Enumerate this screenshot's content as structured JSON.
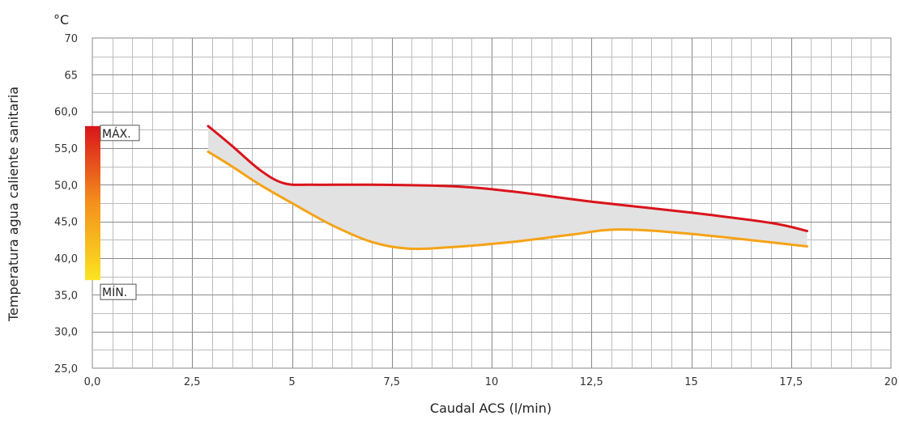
{
  "chart_data": {
    "type": "area",
    "title": "",
    "xlabel": "Caudal ACS (l/min)",
    "ylabel": "Temperatura agua caliente sanitaria",
    "y_unit": "°C",
    "xlim": [
      0,
      20
    ],
    "ylim": [
      25,
      70
    ],
    "x_ticks": [
      "0,0",
      "2,5",
      "5",
      "7,5",
      "10",
      "12,5",
      "15",
      "17,5",
      "20"
    ],
    "y_ticks": [
      "25,0",
      "30,0",
      "35,0",
      "40,0",
      "45,0",
      "50,0",
      "55,0",
      "60,0",
      "65",
      "70"
    ],
    "grid": true,
    "series": [
      {
        "name": "MÁX.",
        "color": "#d9141b",
        "x": [
          2.9,
          3.5,
          4.2,
          4.8,
          5.5,
          7.0,
          9.0,
          10.5,
          12.5,
          15.0,
          17.0,
          17.9
        ],
        "y": [
          58.0,
          55.3,
          52.0,
          50.2,
          50.0,
          50.0,
          49.8,
          49.1,
          47.7,
          46.2,
          44.8,
          43.7
        ]
      },
      {
        "name": "MÍN.",
        "color": "#f5a316",
        "x": [
          2.9,
          3.5,
          4.2,
          5.0,
          6.0,
          7.0,
          7.9,
          9.0,
          10.5,
          12.0,
          13.2,
          15.0,
          17.9
        ],
        "y": [
          54.5,
          52.5,
          50.0,
          47.5,
          44.5,
          42.2,
          41.3,
          41.5,
          42.2,
          43.2,
          43.9,
          43.3,
          41.6
        ]
      }
    ],
    "fill_between_color": "#e2e2e2",
    "range_bar": {
      "top_value": 58,
      "bottom_value": 37,
      "top_color": "#d9141b",
      "bottom_color": "#fbe422"
    }
  }
}
